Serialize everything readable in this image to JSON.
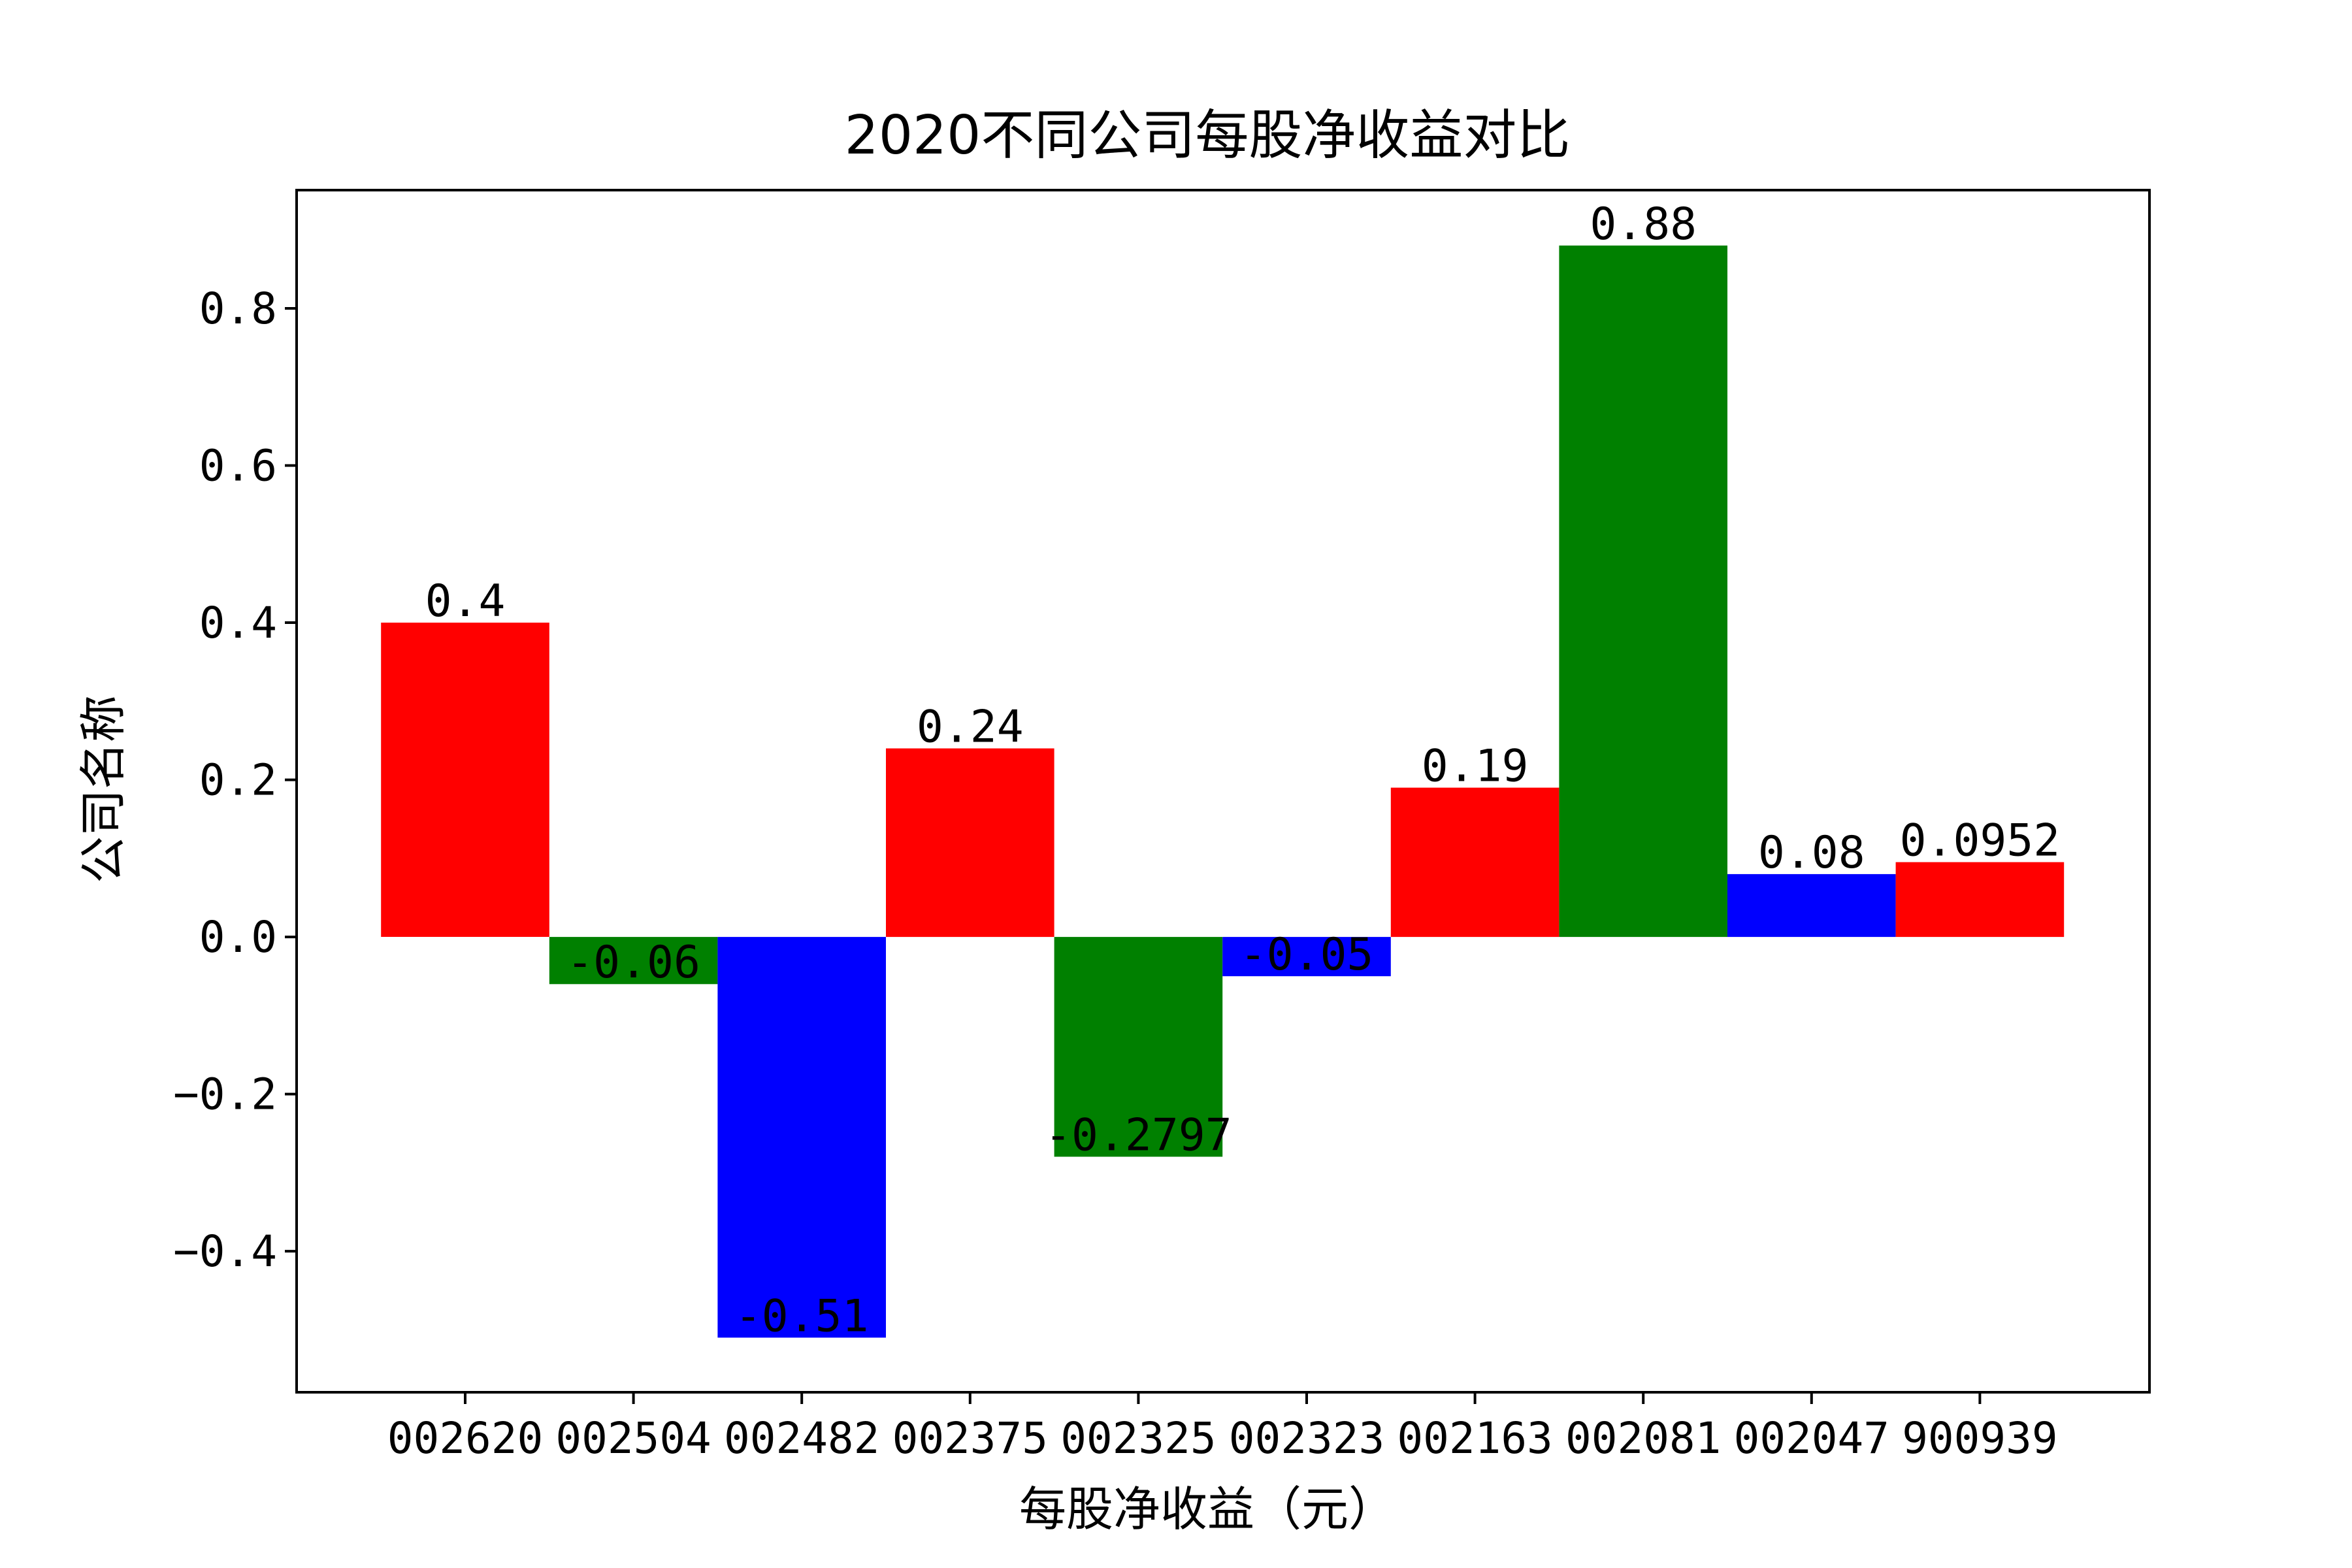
{
  "chart_data": {
    "type": "bar",
    "title": "2020不同公司每股净收益对比",
    "xlabel": "每股净收益（元）",
    "ylabel": "公司名称",
    "categories": [
      "002620",
      "002504",
      "002482",
      "002375",
      "002325",
      "002323",
      "002163",
      "002081",
      "002047",
      "900939"
    ],
    "values": [
      0.4,
      -0.06,
      -0.51,
      0.24,
      -0.2797,
      -0.05,
      0.19,
      0.88,
      0.08,
      0.0952
    ],
    "data_labels": [
      "0.4",
      "-0.06",
      "-0.51",
      "0.24",
      "-0.2797",
      "-0.05",
      "0.19",
      "0.88",
      "0.08",
      "0.0952"
    ],
    "bar_colors": [
      "#ff0000",
      "#008000",
      "#0000ff",
      "#ff0000",
      "#008000",
      "#0000ff",
      "#ff0000",
      "#008000",
      "#0000ff",
      "#ff0000"
    ],
    "ylim": [
      -0.5795,
      0.9505
    ],
    "yticks": [
      -0.4,
      -0.2,
      0.0,
      0.2,
      0.4,
      0.6,
      0.8
    ],
    "ytick_labels": [
      "−0.4",
      "−0.2",
      "0.0",
      "0.2",
      "0.4",
      "0.6",
      "0.8"
    ],
    "grid": false,
    "legend": "none"
  }
}
